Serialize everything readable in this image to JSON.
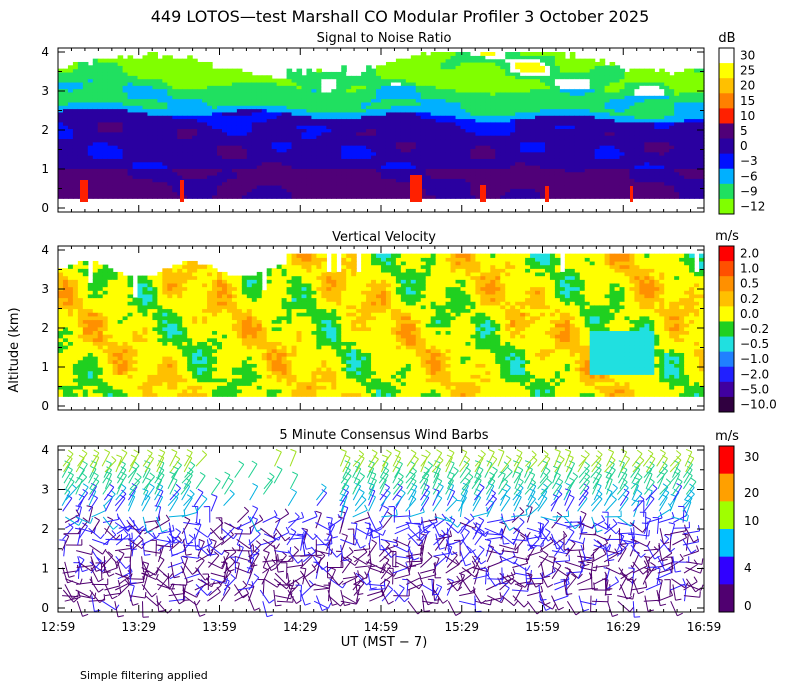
{
  "title": "449 LOTOS—test Marshall CO Modular Profiler  3 October 2025",
  "y_axis_label": "Altitude (km)",
  "x_axis_label": "UT  (MST − 7)",
  "footnote": "Simple filtering applied",
  "x_ticks": [
    "12:59",
    "13:29",
    "13:59",
    "14:29",
    "14:59",
    "15:29",
    "15:59",
    "16:29",
    "16:59"
  ],
  "y_ticks": [
    "0",
    "1",
    "2",
    "3",
    "4"
  ],
  "chart_data": [
    {
      "type": "heatmap",
      "title": "Signal to Noise Ratio",
      "units": "dB",
      "ylabel": "Altitude (km)",
      "ylim": [
        0,
        4
      ],
      "x_range": [
        "12:59",
        "16:59"
      ],
      "colorbar": {
        "labels": [
          "30",
          "25",
          "20",
          "15",
          "10",
          "5",
          "0",
          "−3",
          "−6",
          "−9",
          "−12"
        ],
        "colors": [
          "#ffffff",
          "#ffff00",
          "#ffc000",
          "#ff8000",
          "#ff2000",
          "#500078",
          "#2a00a0",
          "#0010ff",
          "#00b0ff",
          "#20e060",
          "#80ff00"
        ]
      },
      "description_bands": [
        {
          "altitude_km": [
            0.25,
            1.0
          ],
          "snr_db": 5
        },
        {
          "altitude_km": [
            1.0,
            2.2
          ],
          "snr_db": 0
        },
        {
          "altitude_km": [
            2.2,
            2.6
          ],
          "snr_db": -3
        },
        {
          "altitude_km": [
            2.6,
            3.2
          ],
          "snr_db": -9
        },
        {
          "altitude_km": [
            3.2,
            4.0
          ],
          "snr_db": -12
        }
      ]
    },
    {
      "type": "heatmap",
      "title": "Vertical Velocity",
      "units": "m/s",
      "ylabel": "Altitude (km)",
      "ylim": [
        0,
        4
      ],
      "x_range": [
        "12:59",
        "16:59"
      ],
      "colorbar": {
        "labels": [
          "2.0",
          "1.0",
          "0.5",
          "0.2",
          "0.0",
          "−0.2",
          "−0.5",
          "−1.0",
          "−2.0",
          "−5.0",
          "−10.0"
        ],
        "colors": [
          "#ff0000",
          "#ff5000",
          "#ff9000",
          "#ffc000",
          "#ffff00",
          "#20d020",
          "#20e0e0",
          "#2080ff",
          "#2020ff",
          "#4000a0",
          "#300040"
        ]
      },
      "dominant_value_m_s": 0.0
    },
    {
      "type": "scatter",
      "title": "5 Minute Consensus Wind Barbs",
      "units": "m/s",
      "ylabel": "Altitude (km)",
      "ylim": [
        0,
        4
      ],
      "x_range": [
        "12:59",
        "16:59"
      ],
      "colorbar": {
        "labels": [
          "30",
          "20",
          "10",
          "4",
          "0"
        ],
        "colors": [
          "#ff0000",
          "#ffa000",
          "#a0ff00",
          "#00c0ff",
          "#3000ff",
          "#500070"
        ]
      },
      "speed_profile_m_s": [
        {
          "altitude_km": 0.5,
          "speed": 2
        },
        {
          "altitude_km": 1.5,
          "speed": 3
        },
        {
          "altitude_km": 2.2,
          "speed": 5
        },
        {
          "altitude_km": 2.8,
          "speed": 8
        },
        {
          "altitude_km": 3.4,
          "speed": 11
        }
      ]
    }
  ]
}
